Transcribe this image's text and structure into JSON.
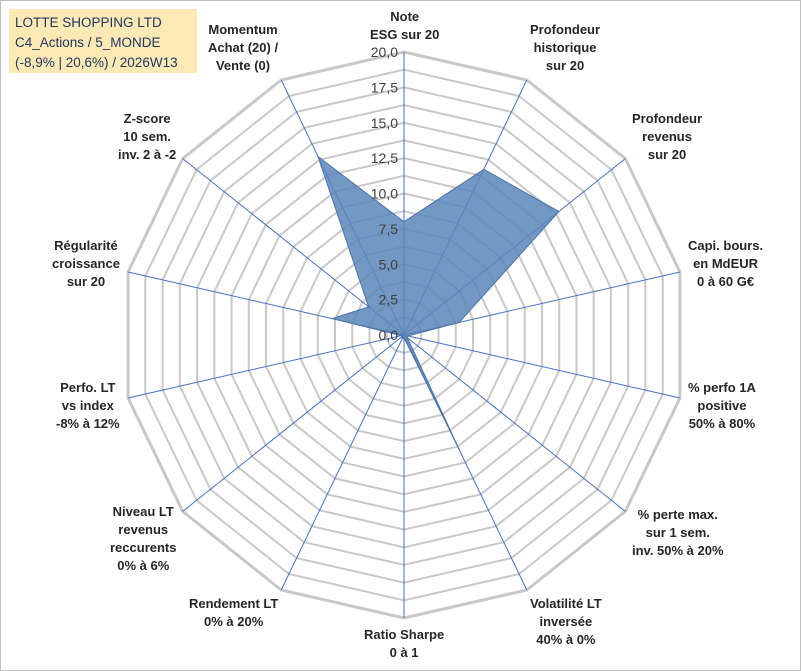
{
  "title_box": {
    "line1": "LOTTE SHOPPING LTD",
    "line2": "C4_Actions / 5_MONDE",
    "line3": "(-8,9% | 20,6%) / 2026W13"
  },
  "chart_data": {
    "type": "radar",
    "rmin": 0,
    "rmax": 20,
    "ticks": [
      "0,0",
      "2,5",
      "5,0",
      "7,5",
      "10,0",
      "12,5",
      "15,0",
      "17,5",
      "20,0"
    ],
    "tick_values": [
      0,
      2.5,
      5,
      7.5,
      10,
      12.5,
      15,
      17.5,
      20
    ],
    "gridline_step": 1.25,
    "axes": [
      {
        "label": [
          "Note",
          "ESG sur 20"
        ],
        "value": 8.0
      },
      {
        "label": [
          "Profondeur",
          "historique",
          "sur 20"
        ],
        "value": 13.0
      },
      {
        "label": [
          "Profondeur",
          "revenus",
          "sur 20"
        ],
        "value": 14.0
      },
      {
        "label": [
          "Capi. bours.",
          "en MdEUR",
          "0 à 60 G€"
        ],
        "value": 4.0
      },
      {
        "label": [
          "% perfo 1A",
          "positive",
          "50% à 80%"
        ],
        "value": 0.3
      },
      {
        "label": [
          "% perte max.",
          "sur 1 sem.",
          "inv. 50% à 20%"
        ],
        "value": 0.3
      },
      {
        "label": [
          "Volatilité LT",
          "inversée",
          "40% à 0%"
        ],
        "value": 9.0
      },
      {
        "label": [
          "Ratio Sharpe",
          "0 à 1"
        ],
        "value": 0.2
      },
      {
        "label": [
          "Rendement LT",
          "0% à 20%"
        ],
        "value": 0.3
      },
      {
        "label": [
          "Niveau LT",
          "revenus",
          "reccurents",
          "0% à 6%"
        ],
        "value": 0.2
      },
      {
        "label": [
          "Perfo. LT",
          "vs index",
          "-8% à 12%"
        ],
        "value": 0.2
      },
      {
        "label": [
          "Régularité",
          "croissance",
          "sur 20"
        ],
        "value": 5.2
      },
      {
        "label": [
          "Z-score",
          "10 sem.",
          "inv. 2 à -2"
        ],
        "value": 3.2
      },
      {
        "label": [
          "Momentum",
          "Achat (20) /",
          "Vente (0)"
        ],
        "value": 14.0
      }
    ],
    "colors": {
      "fill": "#5b86b8",
      "stroke": "#4a72a8",
      "grid": "#c8c8c8",
      "spoke": "#4472c4"
    }
  }
}
